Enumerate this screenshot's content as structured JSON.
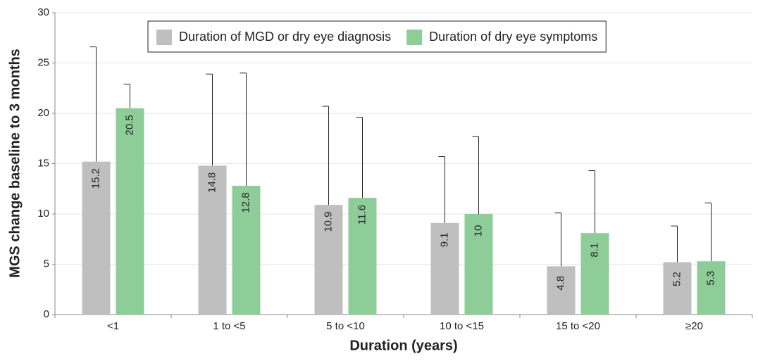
{
  "chart_data": {
    "type": "bar",
    "x_label": "Duration (years)",
    "y_label": "MGS change baseline to 3 months",
    "categories": [
      "<1",
      "1 to <5",
      "5 to <10",
      "10 to <15",
      "15 to <20",
      "≥20"
    ],
    "series": [
      {
        "name": "Duration of MGD or dry eye diagnosis",
        "color": "#c0bfc0",
        "values": [
          15.2,
          14.8,
          10.9,
          9.1,
          4.8,
          5.2
        ],
        "errors": [
          11.4,
          9.1,
          9.8,
          6.6,
          5.3,
          3.6
        ]
      },
      {
        "name": "Duration of dry eye symptoms",
        "color": "#8ecd98",
        "values": [
          20.5,
          12.8,
          11.6,
          10,
          8.1,
          5.3
        ],
        "errors": [
          2.4,
          11.2,
          8.0,
          7.7,
          6.2,
          5.8
        ]
      }
    ],
    "ylim": [
      0,
      30
    ],
    "yticks": [
      0,
      5,
      10,
      15,
      20,
      25,
      30
    ],
    "grid": true,
    "legend": "top"
  }
}
